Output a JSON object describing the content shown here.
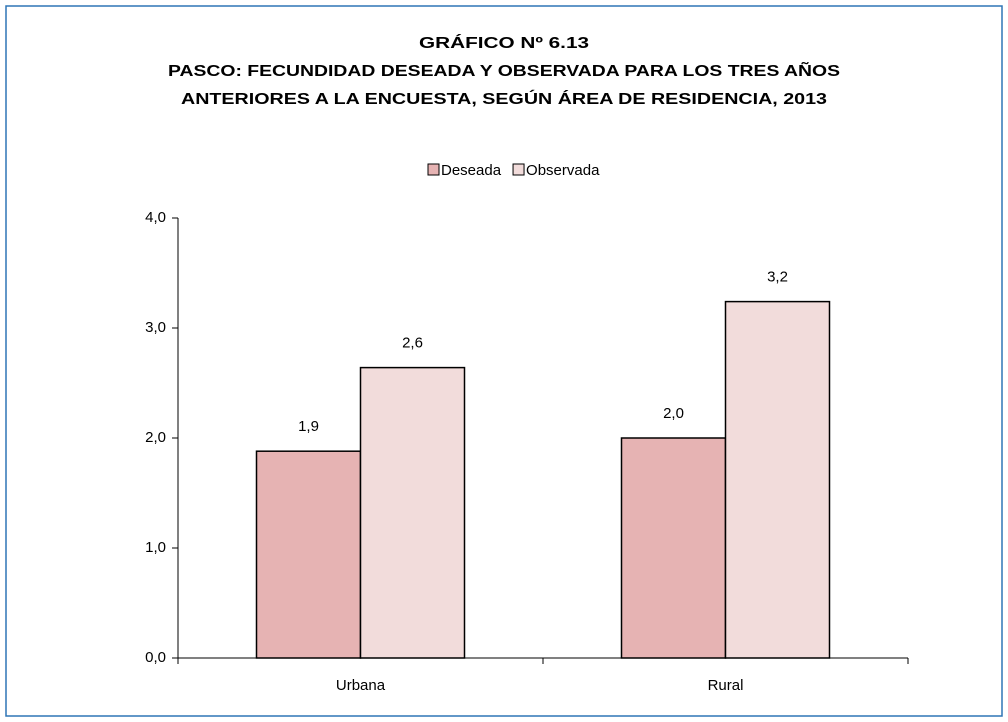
{
  "chart_data": {
    "type": "bar",
    "title": "GRÁFICO Nº 6.13",
    "subtitle": [
      "PASCO: FECUNDIDAD DESEADA Y OBSERVADA PARA LOS TRES AÑOS",
      "ANTERIORES A LA ENCUESTA, SEGÚN ÁREA DE RESIDENCIA, 2013"
    ],
    "categories": [
      "Urbana",
      "Rural"
    ],
    "series": [
      {
        "name": "Deseada",
        "color": "#e6b3b3",
        "values": [
          1.88,
          2.0
        ],
        "value_labels": [
          "1,9",
          "2,0"
        ]
      },
      {
        "name": "Observada",
        "color": "#f2dcdb",
        "values": [
          2.64,
          3.24
        ],
        "value_labels": [
          "2,6",
          "3,2"
        ]
      }
    ],
    "ylim": [
      0,
      4
    ],
    "yticks": [
      {
        "value": 0,
        "label": "0,0"
      },
      {
        "value": 1,
        "label": "1,0"
      },
      {
        "value": 2,
        "label": "2,0"
      },
      {
        "value": 3,
        "label": "3,0"
      },
      {
        "value": 4,
        "label": "4,0"
      }
    ],
    "grid": false,
    "legend": "top"
  }
}
